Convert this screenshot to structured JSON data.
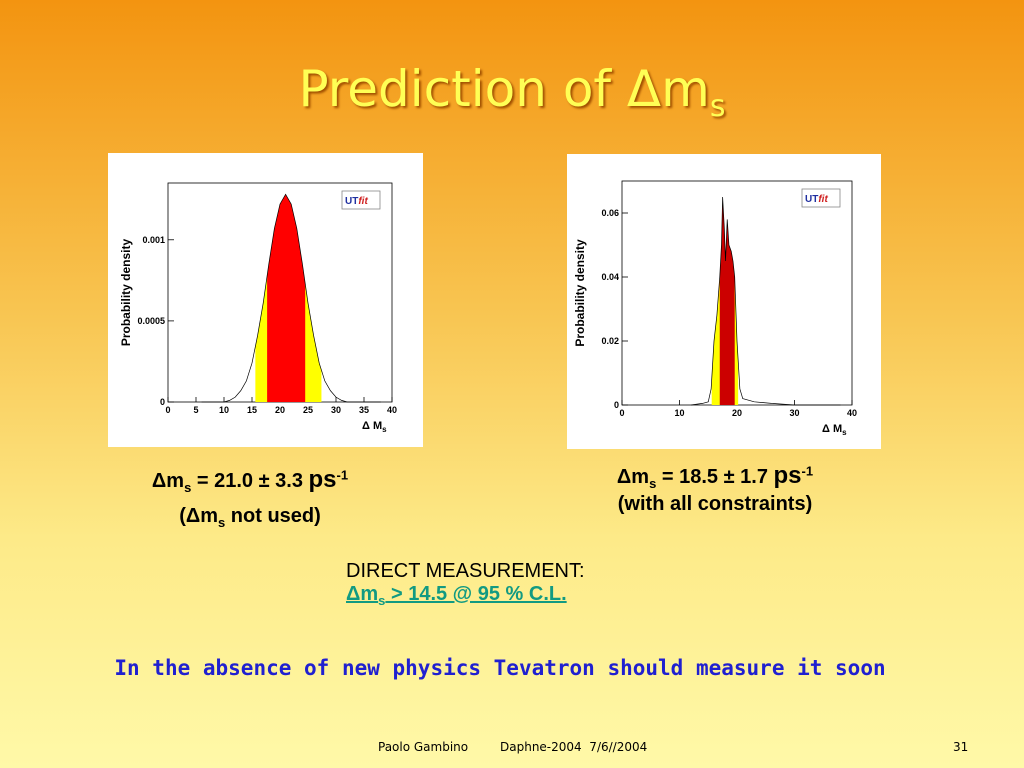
{
  "title": {
    "main": "Prediction of Δm",
    "sub": "s"
  },
  "chart_data": [
    {
      "type": "area",
      "ylabel": "Probability density",
      "xlabel": "Δ M",
      "xlabel_sub": "s",
      "logo": {
        "a": "UT",
        "b": "fit"
      },
      "xlim": [
        0,
        40
      ],
      "xticks": [
        0,
        5,
        10,
        15,
        20,
        25,
        30,
        35,
        40
      ],
      "ylim": [
        0,
        0.00135
      ],
      "yticks": [
        0,
        0.0005,
        0.001
      ],
      "series": [
        {
          "color": "#000000",
          "x": [
            6,
            10,
            11,
            12,
            13,
            14,
            15,
            16,
            17,
            18,
            19,
            20,
            21,
            22,
            23,
            24,
            25,
            26,
            27,
            28,
            29,
            30,
            31,
            32,
            38
          ],
          "values": [
            0,
            0,
            1e-05,
            3e-05,
            7e-05,
            0.00013,
            0.00024,
            0.00041,
            0.00061,
            0.00085,
            0.00107,
            0.00122,
            0.00128,
            0.00122,
            0.00107,
            0.00085,
            0.00061,
            0.00041,
            0.00024,
            0.00013,
            7e-05,
            3e-05,
            1e-05,
            0,
            0
          ]
        }
      ],
      "bands": [
        {
          "color": "#ffff00",
          "range": [
            15.6,
            27.4
          ]
        },
        {
          "color": "#ff0000",
          "range": [
            17.7,
            24.5
          ]
        }
      ]
    },
    {
      "type": "area",
      "ylabel": "Probability density",
      "xlabel": "Δ M",
      "xlabel_sub": "s",
      "logo": {
        "a": "UT",
        "b": "fit"
      },
      "xlim": [
        0,
        40
      ],
      "xticks": [
        0,
        10,
        20,
        30,
        40
      ],
      "ylim": [
        0,
        0.07
      ],
      "yticks": [
        0,
        0.02,
        0.04,
        0.06
      ],
      "series": [
        {
          "color": "#000000",
          "x": [
            12,
            14,
            15,
            15.5,
            16,
            16.5,
            17,
            17.3,
            17.5,
            17.8,
            18,
            18.3,
            18.6,
            19,
            19.3,
            19.6,
            20,
            20.5,
            21,
            23,
            26,
            30,
            38
          ],
          "values": [
            0,
            0.0005,
            0.001,
            0.005,
            0.02,
            0.028,
            0.04,
            0.05,
            0.065,
            0.055,
            0.045,
            0.058,
            0.05,
            0.048,
            0.045,
            0.04,
            0.02,
            0.005,
            0.002,
            0.001,
            0.0005,
            0,
            0
          ]
        }
      ],
      "bands": [
        {
          "color": "#ffff00",
          "range": [
            15.6,
            20.2
          ]
        },
        {
          "color": "#cc0000",
          "range": [
            17,
            19.6
          ]
        }
      ]
    }
  ],
  "caption1": {
    "line1": {
      "a": "Δm",
      "sub": "s",
      "b": " = 21.0 ± 3.3 ",
      "unit": "ps",
      "sup": "-1"
    },
    "line2": {
      "a": "(Δm",
      "sub": "s",
      "b": " not used)"
    }
  },
  "caption2": {
    "line1": {
      "a": "Δm",
      "sub": "s",
      "b": " = 18.5 ± 1.7 ",
      "unit": "ps",
      "sup": "-1"
    },
    "line2": "(with all constraints)"
  },
  "direct": {
    "heading": "DIRECT MEASUREMENT:",
    "link": {
      "a": "Δm",
      "sub": "s",
      "b": " > 14.5 @ 95 % C.L. "
    }
  },
  "statement": "In the absence of new physics Tevatron should measure it soon",
  "footer": {
    "author": "Paolo Gambino",
    "event": "Daphne-2004  7/6//2004",
    "page": "31"
  }
}
